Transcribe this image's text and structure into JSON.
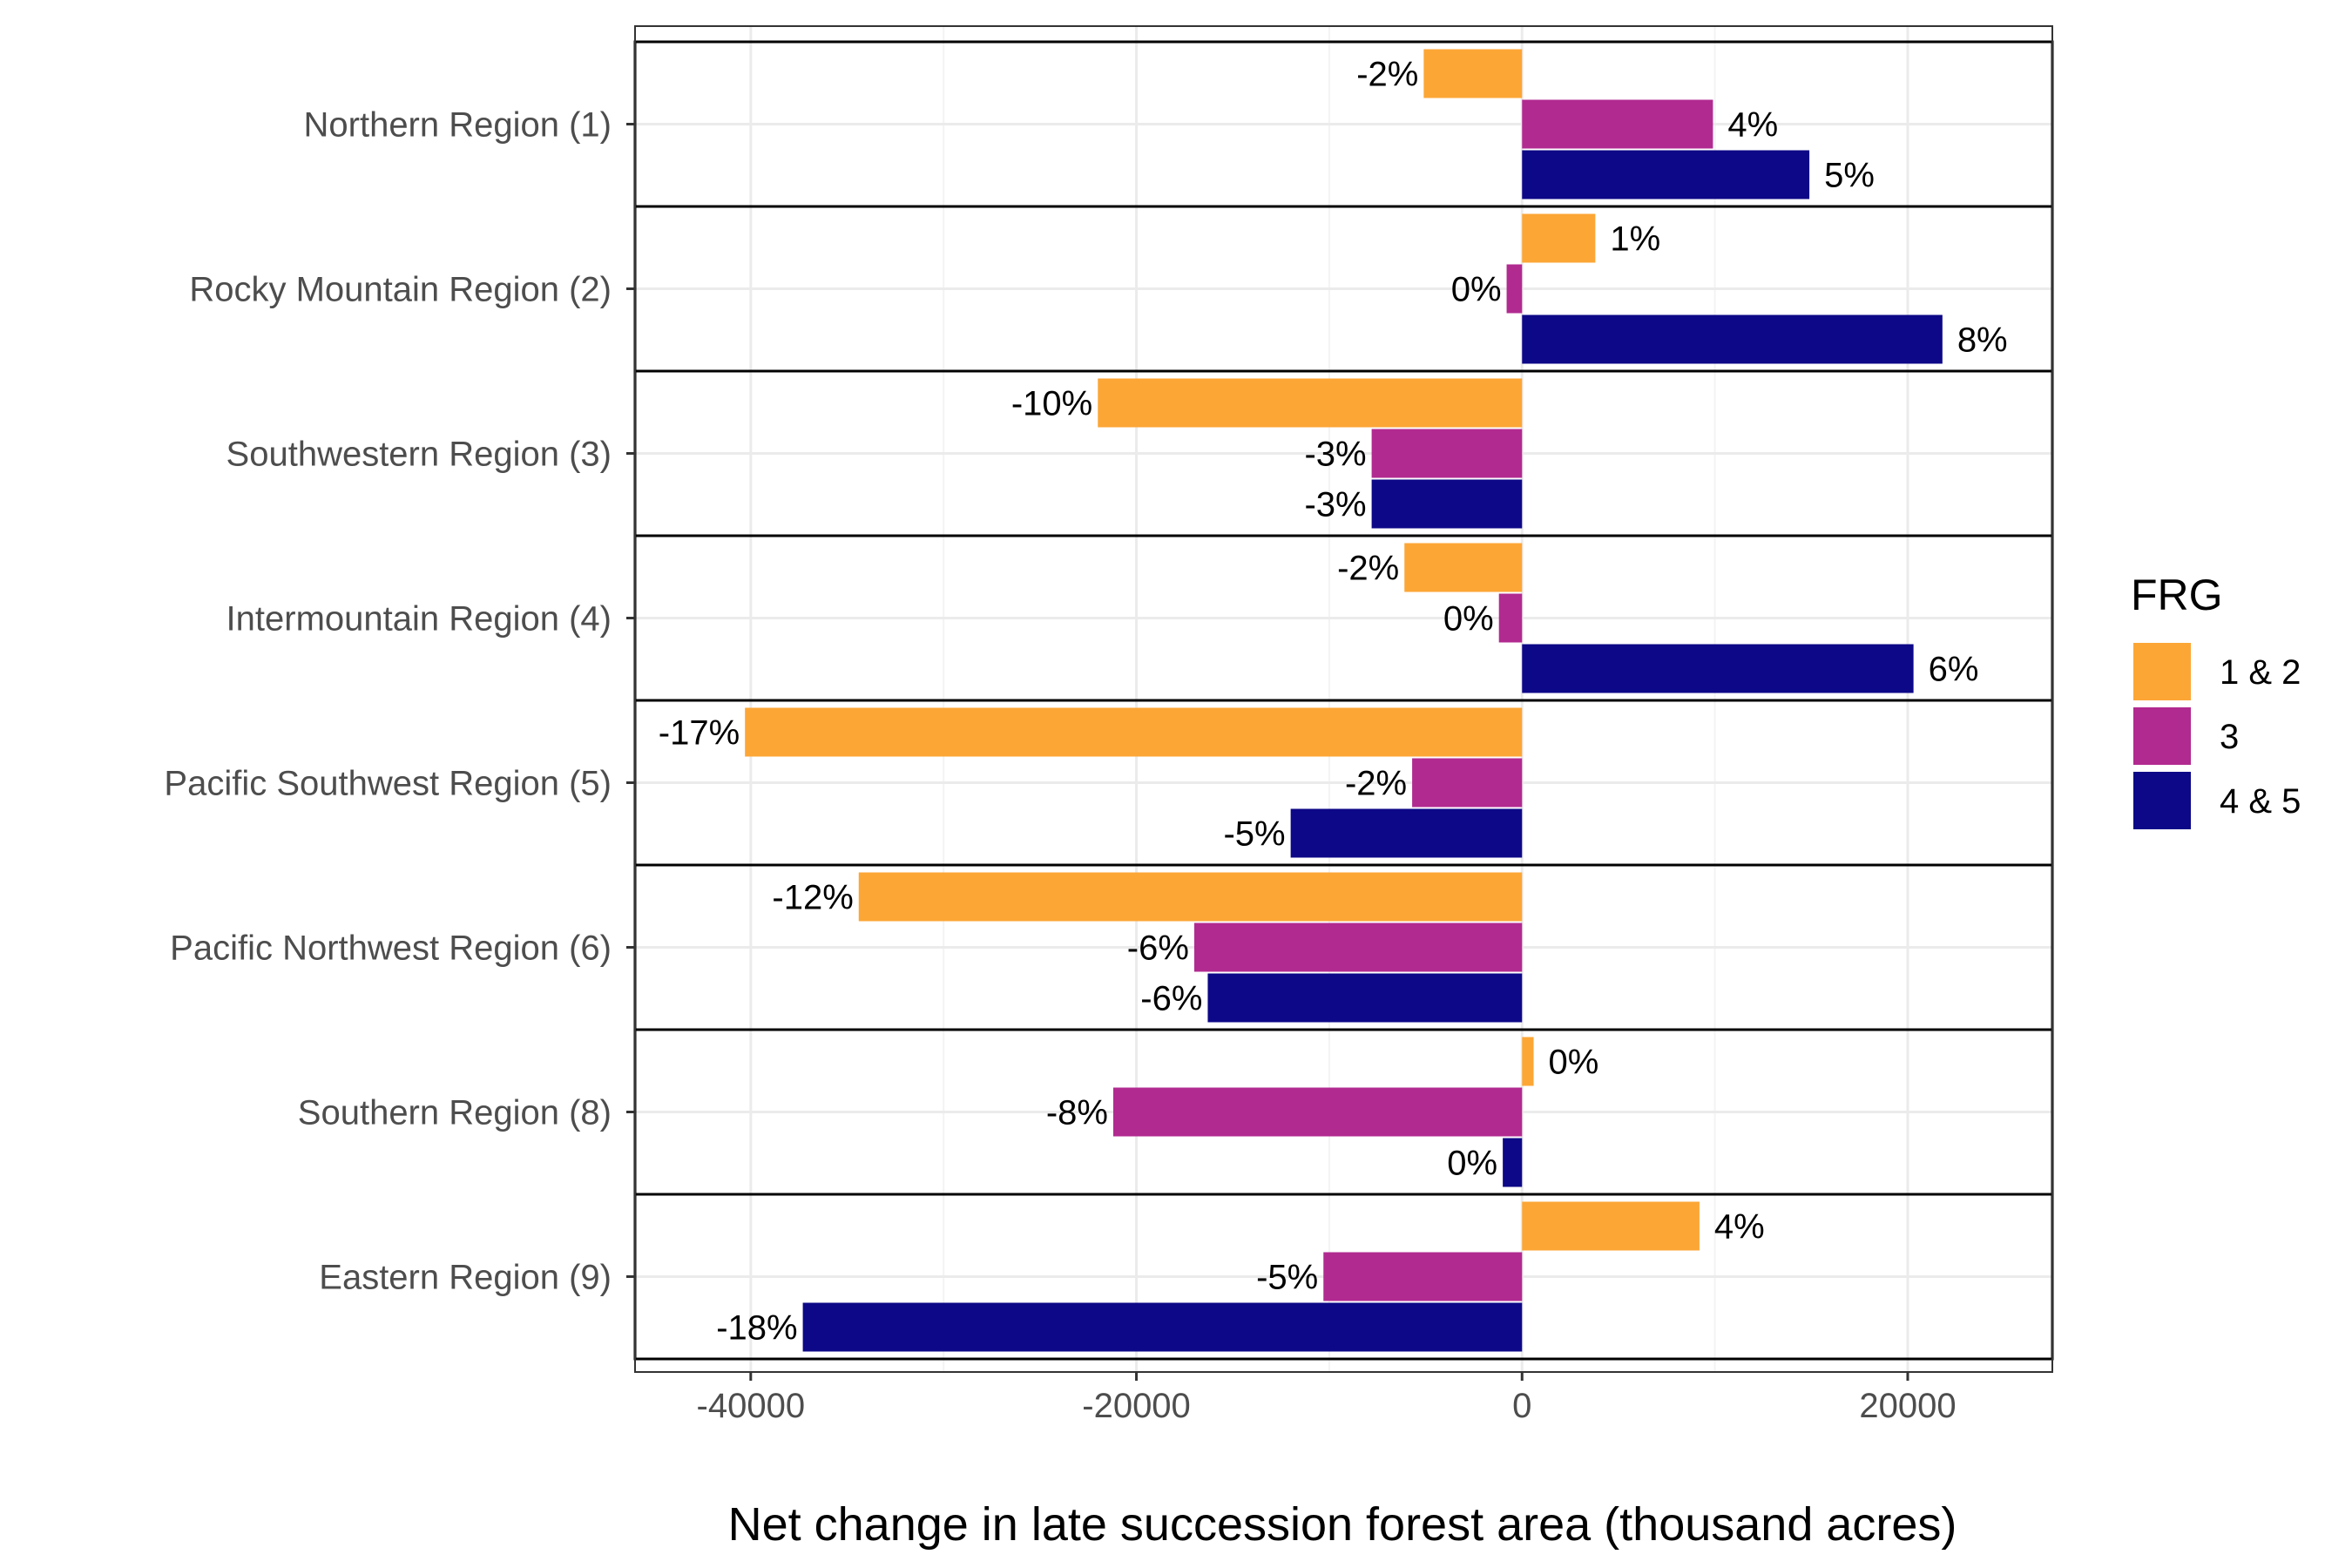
{
  "chart_data": {
    "type": "bar",
    "orientation": "horizontal",
    "xlabel": "Net change in late succession forest area (thousand acres)",
    "ylabel": "",
    "xlim": [
      -46000,
      27500
    ],
    "x_ticks": [
      -40000,
      -20000,
      0,
      20000
    ],
    "x_tick_labels": [
      "-40000",
      "-20000",
      "0",
      "20000"
    ],
    "grid": true,
    "legend": {
      "title": "FRG",
      "position": "right"
    },
    "categories": [
      "Northern Region (1)",
      "Rocky Mountain Region (2)",
      "Southwestern Region (3)",
      "Intermountain Region (4)",
      "Pacific Southwest Region (5)",
      "Pacific Northwest Region (6)",
      "Southern Region (8)",
      "Eastern Region (9)"
    ],
    "series": [
      {
        "name": "1 & 2",
        "color": "#FCA636",
        "values": [
          -5100,
          3800,
          -22000,
          -6100,
          -40300,
          -34400,
          600,
          9200
        ],
        "labels": [
          "-2%",
          "1%",
          "-10%",
          "-2%",
          "-17%",
          "-12%",
          "0%",
          "4%"
        ]
      },
      {
        "name": "3",
        "color": "#B12A90",
        "values": [
          9900,
          -800,
          -7800,
          -1200,
          -5700,
          -17000,
          -21200,
          -10300
        ],
        "labels": [
          "4%",
          "0%",
          "-3%",
          "0%",
          "-2%",
          "-6%",
          "-8%",
          "-5%"
        ]
      },
      {
        "name": "4 & 5",
        "color": "#0D0887",
        "values": [
          14900,
          21800,
          -7800,
          20300,
          -12000,
          -16300,
          -1000,
          -37300
        ],
        "labels": [
          "5%",
          "8%",
          "-3%",
          "6%",
          "-5%",
          "-6%",
          "0%",
          "-18%"
        ]
      }
    ]
  }
}
